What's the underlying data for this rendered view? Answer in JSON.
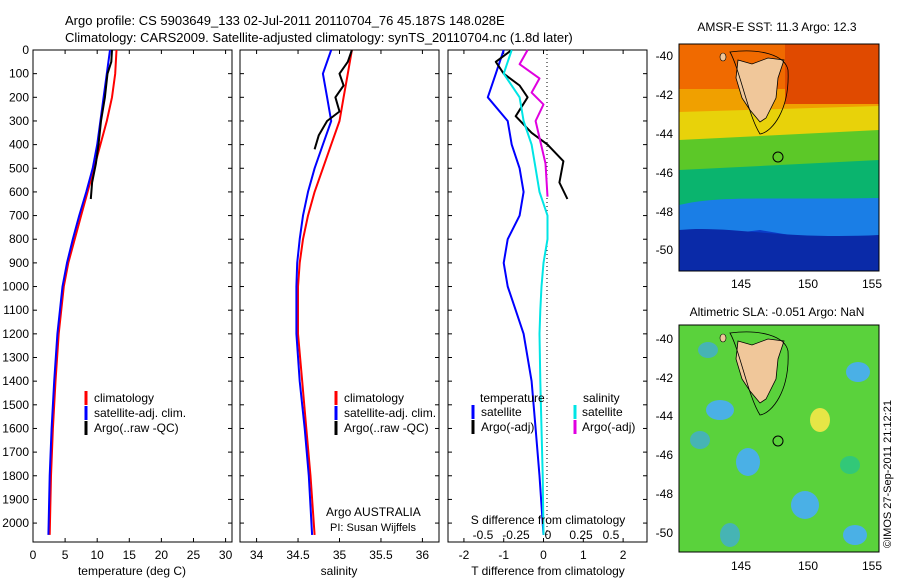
{
  "header": {
    "line1": "Argo profile: CS 5903649_133 02-Jul-2011 20110704_76 45.187S 148.028E",
    "line2": "Climatology: CARS2009. Satellite-adjusted climatology: synTS_20110704.nc (1.8d later)"
  },
  "colors": {
    "climatology": "#ff0000",
    "satellite": "#0000ff",
    "argo": "#000000",
    "sat_salinity": "#00e5e5",
    "argo_salinity": "#e000e0"
  },
  "chart_data": [
    {
      "type": "line",
      "panel": "temperature",
      "xlabel": "temperature (deg C)",
      "xlim": [
        0,
        31
      ],
      "xticks": [
        0,
        5,
        10,
        15,
        20,
        25,
        30
      ],
      "ylim": [
        0,
        2080
      ],
      "yticks": [
        0,
        100,
        200,
        300,
        400,
        500,
        600,
        700,
        800,
        900,
        1000,
        1100,
        1200,
        1300,
        1400,
        1500,
        1600,
        1700,
        1800,
        1900,
        2000
      ],
      "legend_position": "center-right",
      "legend": [
        "climatology",
        "satellite-adj. clim.",
        "Argo(..raw -QC)"
      ],
      "series": [
        {
          "name": "climatology",
          "color": "#ff0000",
          "x": [
            13.0,
            12.8,
            12.3,
            11.5,
            10.5,
            9.5,
            8.5,
            7.5,
            6.5,
            5.5,
            4.8,
            4.0,
            3.5,
            3.1,
            2.8,
            2.6
          ],
          "y": [
            0,
            100,
            200,
            300,
            400,
            500,
            600,
            700,
            800,
            900,
            1000,
            1200,
            1400,
            1600,
            1800,
            2050
          ]
        },
        {
          "name": "satellite-adj. clim.",
          "color": "#0000ff",
          "x": [
            12.0,
            11.5,
            11.0,
            10.5,
            10.0,
            9.3,
            8.3,
            7.2,
            6.2,
            5.3,
            4.6,
            3.8,
            3.3,
            2.9,
            2.6,
            2.4
          ],
          "y": [
            0,
            100,
            200,
            300,
            400,
            500,
            600,
            700,
            800,
            900,
            1000,
            1200,
            1400,
            1600,
            1800,
            2050
          ]
        },
        {
          "name": "Argo(..raw -QC)",
          "color": "#000000",
          "x": [
            12.3,
            12.2,
            11.6,
            11.2,
            10.6,
            10.2,
            9.8,
            9.2,
            9.0
          ],
          "y": [
            0,
            50,
            100,
            200,
            300,
            400,
            480,
            560,
            630
          ]
        }
      ]
    },
    {
      "type": "line",
      "panel": "salinity",
      "xlabel": "salinity",
      "xlim": [
        33.8,
        36.2
      ],
      "xticks": [
        34,
        34.5,
        35,
        35.5,
        36
      ],
      "ylim": [
        0,
        2080
      ],
      "legend_position": "center-right",
      "legend": [
        "climatology",
        "satellite-adj. clim.",
        "Argo(..raw -QC)"
      ],
      "annotation": [
        "Argo AUSTRALIA",
        "PI: Susan Wijffels"
      ],
      "series": [
        {
          "name": "climatology",
          "color": "#ff0000",
          "x": [
            35.15,
            35.1,
            35.05,
            35.0,
            34.9,
            34.8,
            34.7,
            34.62,
            34.56,
            34.52,
            34.5,
            34.5,
            34.55,
            34.6,
            34.65,
            34.7
          ],
          "y": [
            0,
            100,
            200,
            300,
            400,
            500,
            600,
            700,
            800,
            900,
            1000,
            1200,
            1400,
            1600,
            1800,
            2050
          ]
        },
        {
          "name": "satellite-adj. clim.",
          "color": "#0000ff",
          "x": [
            34.9,
            34.8,
            34.85,
            34.9,
            34.8,
            34.7,
            34.62,
            34.56,
            34.52,
            34.49,
            34.48,
            34.48,
            34.52,
            34.58,
            34.63,
            34.67
          ],
          "y": [
            0,
            100,
            200,
            300,
            400,
            500,
            600,
            700,
            800,
            900,
            1000,
            1200,
            1400,
            1600,
            1800,
            2050
          ]
        },
        {
          "name": "Argo(..raw -QC)",
          "color": "#000000",
          "x": [
            35.15,
            35.1,
            35.0,
            35.05,
            34.95,
            35.0,
            34.85,
            34.75,
            34.7
          ],
          "y": [
            0,
            50,
            100,
            150,
            200,
            260,
            300,
            360,
            420
          ]
        }
      ]
    },
    {
      "type": "line",
      "panel": "difference",
      "xlabel": "T difference from climatology",
      "xlabel_top": "S difference from climatology",
      "xlim": [
        -2.4,
        2.6
      ],
      "xticks": [
        -2,
        -1,
        0,
        1,
        2
      ],
      "top_ticks": [
        "-0.5",
        "-0.25",
        "0",
        "0.25",
        "0.5"
      ],
      "ylim": [
        0,
        2080
      ],
      "legend_position": "center",
      "legend_titles": [
        "temperature",
        "salinity"
      ],
      "legend": [
        "satellite",
        "Argo(-adj)",
        "satellite",
        "Argo(-adj)"
      ],
      "series": [
        {
          "name": "satellite",
          "group": "temperature",
          "color": "#0000ff",
          "x": [
            -1.0,
            -1.2,
            -1.4,
            -0.9,
            -0.8,
            -0.6,
            -0.5,
            -0.6,
            -0.9,
            -1.0,
            -0.9,
            -0.7,
            -0.5,
            -0.3,
            -0.2,
            -0.1,
            0
          ],
          "y": [
            0,
            100,
            200,
            300,
            400,
            500,
            600,
            700,
            800,
            900,
            1000,
            1100,
            1200,
            1400,
            1600,
            1800,
            2050
          ]
        },
        {
          "name": "Argo(-adj)",
          "group": "temperature",
          "color": "#000000",
          "x": [
            -0.8,
            -1.2,
            -1.0,
            -0.6,
            -0.4,
            -0.7,
            -0.3,
            0.1,
            0.5,
            0.4,
            0.6
          ],
          "y": [
            0,
            50,
            100,
            150,
            200,
            280,
            350,
            400,
            470,
            560,
            630
          ]
        },
        {
          "name": "satellite",
          "group": "salinity",
          "color": "#00e5e5",
          "x": [
            -0.8,
            -1.0,
            -0.6,
            -0.5,
            -0.3,
            -0.2,
            -0.1,
            0.1,
            0.1,
            0.0,
            -0.05,
            -0.08,
            -0.1,
            -0.08,
            -0.05,
            -0.02,
            0
          ],
          "y": [
            0,
            100,
            200,
            300,
            400,
            500,
            600,
            700,
            800,
            900,
            1000,
            1100,
            1200,
            1400,
            1600,
            1800,
            2050
          ]
        },
        {
          "name": "Argo(-adj)",
          "group": "salinity",
          "color": "#e000e0",
          "x": [
            -0.4,
            -0.6,
            -0.1,
            -0.3,
            0.0,
            -0.2,
            0.05,
            0.1
          ],
          "y": [
            0,
            60,
            120,
            180,
            230,
            300,
            480,
            620
          ]
        }
      ]
    }
  ],
  "maps": {
    "sst": {
      "title": "AMSR-E SST: 11.3 Argo: 12.3",
      "yticks": [
        "-40",
        "-42",
        "-44",
        "-46",
        "-48",
        "-50"
      ],
      "xticks": [
        "145",
        "150",
        "155"
      ]
    },
    "sla": {
      "title": "Altimetric SLA: -0.051 Argo: NaN",
      "yticks": [
        "-40",
        "-42",
        "-44",
        "-46",
        "-48",
        "-50"
      ],
      "xticks": [
        "145",
        "150",
        "155"
      ]
    }
  },
  "credit": "©IMOS 27-Sep-2011 21:12:21"
}
